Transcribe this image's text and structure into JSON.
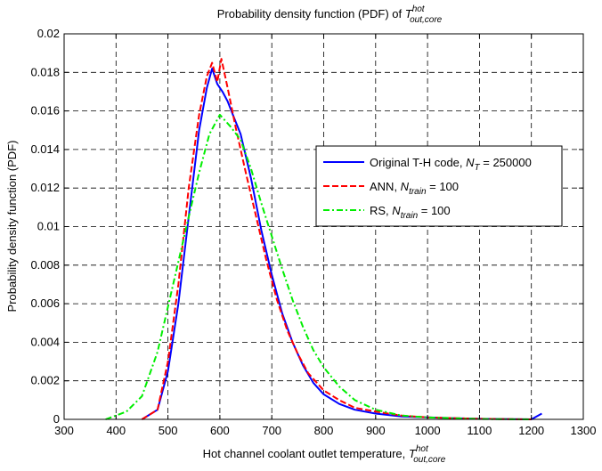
{
  "chart_data": {
    "type": "line",
    "title": {
      "text": "Probability density function (PDF) of ",
      "var": "T",
      "sup": "hot",
      "sub": "out,core"
    },
    "xlabel": {
      "text": "Hot channel coolant outlet temperature, ",
      "var": "T",
      "sup": "hot",
      "sub": "out,core"
    },
    "ylabel": "Probability density function (PDF)",
    "xlim": [
      300,
      1300
    ],
    "ylim": [
      0,
      0.02
    ],
    "xticks": [
      "300",
      "400",
      "500",
      "600",
      "700",
      "800",
      "900",
      "1000",
      "1100",
      "1200",
      "1300"
    ],
    "yticks": [
      "0",
      "0.002",
      "0.004",
      "0.006",
      "0.008",
      "0.01",
      "0.012",
      "0.014",
      "0.016",
      "0.018",
      "0.02"
    ],
    "grid": true,
    "legend_position": "right",
    "series": [
      {
        "name": {
          "prefix": "Original T-H code, ",
          "var": "N",
          "sub": "T",
          "suffix": " = 250000"
        },
        "color": "#0000ff",
        "style": "solid",
        "x": [
          450,
          480,
          500,
          520,
          540,
          560,
          575,
          585,
          595,
          605,
          615,
          625,
          640,
          660,
          680,
          700,
          720,
          740,
          760,
          780,
          800,
          830,
          860,
          900,
          950,
          1000,
          1100,
          1200,
          1220
        ],
        "y": [
          0,
          0.0005,
          0.0025,
          0.006,
          0.0105,
          0.015,
          0.0172,
          0.0182,
          0.0174,
          0.017,
          0.0165,
          0.0158,
          0.0148,
          0.0125,
          0.0098,
          0.0075,
          0.0055,
          0.004,
          0.0028,
          0.0019,
          0.0013,
          0.0008,
          0.0005,
          0.0003,
          0.00015,
          0.0001,
          3e-05,
          0.0,
          0.0003
        ]
      },
      {
        "name": {
          "prefix": "ANN, ",
          "var": "N",
          "sub": "train",
          "suffix": " = 100"
        },
        "color": "#ff0000",
        "style": "dashed",
        "x": [
          450,
          480,
          500,
          520,
          540,
          560,
          575,
          585,
          595,
          603,
          615,
          630,
          650,
          670,
          690,
          710,
          730,
          750,
          770,
          800,
          830,
          860,
          900,
          950,
          1000,
          1100,
          1200
        ],
        "y": [
          0,
          0.0005,
          0.003,
          0.007,
          0.012,
          0.0158,
          0.0178,
          0.0185,
          0.0175,
          0.0187,
          0.0172,
          0.0152,
          0.0128,
          0.0105,
          0.0082,
          0.0062,
          0.0046,
          0.0034,
          0.0024,
          0.0015,
          0.001,
          0.0006,
          0.0004,
          0.0002,
          0.0001,
          3e-05,
          0.0
        ]
      },
      {
        "name": {
          "prefix": "RS, ",
          "var": "N",
          "sub": "train",
          "suffix": " = 100"
        },
        "color": "#00ee00",
        "style": "dashdot",
        "x": [
          380,
          420,
          450,
          480,
          510,
          540,
          560,
          580,
          600,
          620,
          640,
          660,
          680,
          700,
          720,
          740,
          760,
          780,
          800,
          830,
          860,
          900,
          950,
          1000,
          1100,
          1200
        ],
        "y": [
          0,
          0.0004,
          0.0012,
          0.0035,
          0.007,
          0.0105,
          0.0128,
          0.0148,
          0.0158,
          0.0152,
          0.0145,
          0.013,
          0.0112,
          0.0095,
          0.0078,
          0.0062,
          0.0048,
          0.0036,
          0.0027,
          0.0017,
          0.001,
          0.0005,
          0.0002,
          0.0001,
          2e-05,
          0.0
        ]
      }
    ]
  }
}
